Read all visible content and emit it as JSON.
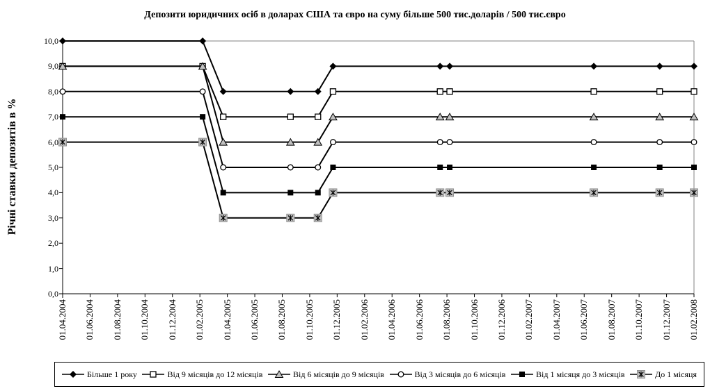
{
  "chart_data": {
    "type": "line",
    "title": "Депозити юридичних осіб в доларах США та євро на суму більше 500 тис.доларів / 500 тис.євро",
    "ylabel": "Річні ставки депозитів в %",
    "ylim": [
      0.0,
      10.0
    ],
    "ytick_labels": [
      "0,0",
      "1,0",
      "2,0",
      "3,0",
      "4,0",
      "5,0",
      "6,0",
      "7,0",
      "8,0",
      "9,0",
      "10,0"
    ],
    "xtick_labels": [
      "01.04.2004",
      "01.06.2004",
      "01.08.2004",
      "01.10.2004",
      "01.12.2004",
      "01.02.2005",
      "01.04.2005",
      "01.06.2005",
      "01.08.2005",
      "01.10.2005",
      "01.12.2005",
      "01.02.2006",
      "01.04.2006",
      "01.06.2006",
      "01.08.2006",
      "01.10.2006",
      "01.12.2006",
      "01.02.2007",
      "01.04.2007",
      "01.06.2007",
      "01.08.2007",
      "01.10.2007",
      "01.12.2007",
      "01.02.2008"
    ],
    "xtick_interval_months": 2,
    "grid": false,
    "legend_position": "bottom",
    "x_dates": [
      "01.04.2004",
      "08.02.2005",
      "21.03.2005",
      "18.08.2005",
      "19.10.2005",
      "22.11.2005",
      "16.07.2006",
      "07.08.2006",
      "22.06.2007",
      "16.11.2007",
      "01.02.2008"
    ],
    "x_months_from_start": [
      0,
      10.2,
      11.7,
      16.6,
      18.6,
      19.7,
      27.5,
      28.2,
      38.7,
      43.5,
      46
    ],
    "series": [
      {
        "name": "Більше 1 року",
        "marker": "diamond-filled",
        "values": [
          10,
          10,
          8,
          8,
          8,
          9,
          9,
          9,
          9,
          9,
          9
        ]
      },
      {
        "name": "Від 9 місяців до 12 місяців",
        "marker": "square-open",
        "values": [
          9,
          9,
          7,
          7,
          7,
          8,
          8,
          8,
          8,
          8,
          8
        ]
      },
      {
        "name": "Від 6 місяців до 9 місяців",
        "marker": "triangle-gray",
        "values": [
          9,
          9,
          6,
          6,
          6,
          7,
          7,
          7,
          7,
          7,
          7
        ]
      },
      {
        "name": "Від 3 місяців до 6 місяців",
        "marker": "circle-open",
        "values": [
          8,
          8,
          5,
          5,
          5,
          6,
          6,
          6,
          6,
          6,
          6
        ]
      },
      {
        "name": "Від 1 місяця до 3 місяців",
        "marker": "square-filled",
        "values": [
          7,
          7,
          4,
          4,
          4,
          5,
          5,
          5,
          5,
          5,
          5
        ]
      },
      {
        "name": "До 1 місяця",
        "marker": "asterisk-gray",
        "values": [
          6,
          6,
          3,
          3,
          3,
          4,
          4,
          4,
          4,
          4,
          4
        ]
      }
    ],
    "colors": {
      "line": "#000000",
      "marker_gray_fill": "#C0C0C0",
      "plot_frame_gray": "#808080",
      "text": "#000000",
      "background": "#FFFFFF"
    }
  }
}
